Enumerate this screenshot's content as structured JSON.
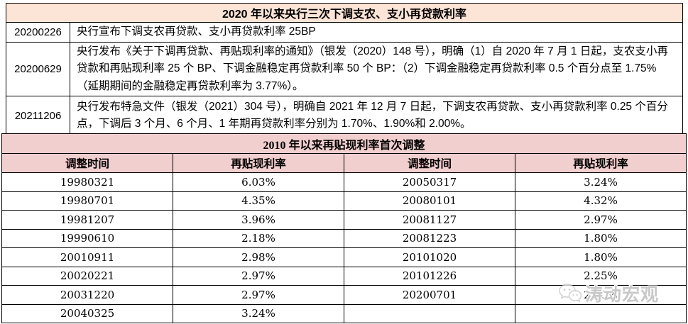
{
  "table1": {
    "title": "2020 年以来央行三次下调支农、支小再贷款利率",
    "title_bg": "#fce4d6",
    "rows": [
      {
        "date": "20200226",
        "text": "央行宣布下调支农再贷款、支小再贷款利率 25BP"
      },
      {
        "date": "20200629",
        "text": "央行发布《关于下调再贷款、再贴现利率的通知》（银发（2020）148 号），明确（1）自 2020 年 7 月 1 日起，支农支小再贷款和再贴现利率 25 个 BP、下调金融稳定再贷款利率 50 个 BP：（2）下调金融稳定再贷款利率 0.5 个百分点至 1.75%（延期期间的金融稳定再贷款利率为 3.77%）。"
      },
      {
        "date": "20211206",
        "text": "央行发布特急文件（银发（2021）304 号），明确自 2021 年 12 月 7 日起，下调支农再贷款、支小再贷款利率 0.25 个百分点，下调后 3 个月、6 个月、1 年期再贷款利率分别为 1.70%、1.90%和 2.00%。"
      }
    ]
  },
  "table2": {
    "title": "2010 年以来再贴现利率首次调整",
    "header_bg": "#f2cfcf",
    "headers": [
      "调整时间",
      "再贴现利率",
      "调整时间",
      "再贴现利率"
    ],
    "rows": [
      [
        "19980321",
        "6.03%",
        "20050317",
        "3.24%"
      ],
      [
        "19980701",
        "4.35%",
        "20080101",
        "4.32%"
      ],
      [
        "19981207",
        "3.96%",
        "20081127",
        "2.97%"
      ],
      [
        "19990610",
        "2.18%",
        "20081223",
        "1.80%"
      ],
      [
        "20010911",
        "2.98%",
        "20101020",
        "1.80%"
      ],
      [
        "20020221",
        "2.97%",
        "20101226",
        "2.25%"
      ],
      [
        "20031220",
        "2.97%",
        "20200701",
        "2.00%"
      ],
      [
        "20040325",
        "3.24%",
        "",
        ""
      ]
    ]
  },
  "watermark": {
    "text": "涛动宏观"
  }
}
